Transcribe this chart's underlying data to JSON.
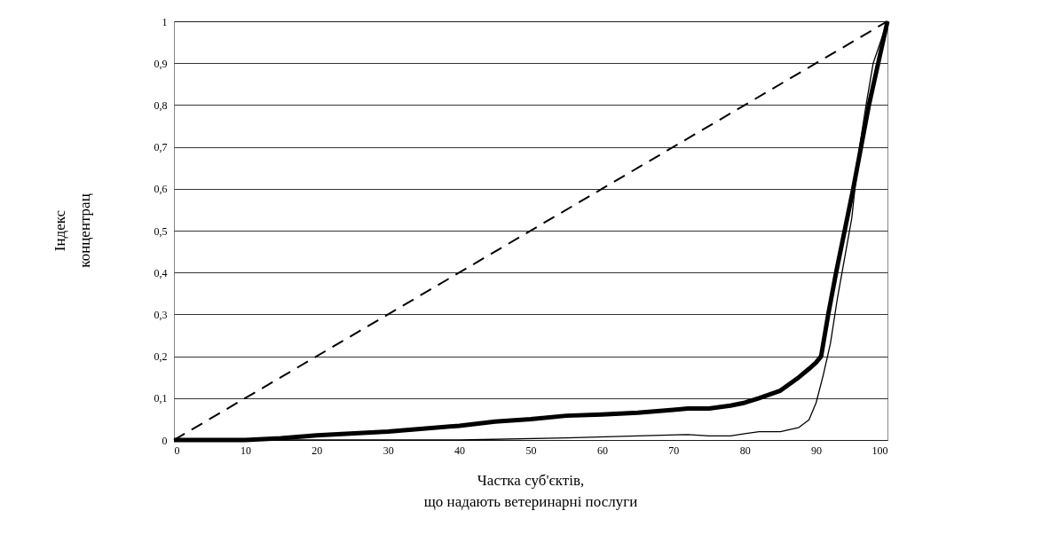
{
  "chart_data": {
    "type": "line",
    "xlabel": "Частка суб'єктів,\nщо надають ветеринарні послуги",
    "ylabel": "Індекс\nконцентрац",
    "series": [
      {
        "color": "#000000",
        "line_style": "dashed",
        "x": [
          0,
          100
        ],
        "values": [
          0,
          1
        ]
      },
      {
        "color": "#000000",
        "x": [
          0,
          10,
          15,
          20,
          30,
          40,
          45,
          50,
          55,
          60,
          65,
          70,
          72,
          75,
          78,
          80,
          82,
          85,
          87.6,
          89,
          90,
          90.7,
          91.7,
          92.8,
          94,
          95.2,
          96.3,
          97.4,
          98.7,
          100
        ],
        "values": [
          0,
          0,
          0.004,
          0.011,
          0.02,
          0.034,
          0.044,
          0.05,
          0.058,
          0.061,
          0.065,
          0.072,
          0.075,
          0.075,
          0.082,
          0.089,
          0.1,
          0.118,
          0.15,
          0.17,
          0.185,
          0.2,
          0.3,
          0.4,
          0.5,
          0.6,
          0.7,
          0.8,
          0.9,
          1
        ]
      },
      {
        "color": "#000000",
        "x": [
          0,
          40,
          55,
          65,
          72,
          75,
          78,
          80,
          82,
          85,
          87.6,
          89,
          90,
          91,
          92,
          93,
          94,
          95,
          96,
          97,
          98,
          100
        ],
        "values": [
          0,
          0,
          0.005,
          0.01,
          0.013,
          0.01,
          0.01,
          0.015,
          0.02,
          0.02,
          0.03,
          0.048,
          0.089,
          0.155,
          0.23,
          0.34,
          0.435,
          0.53,
          0.69,
          0.8,
          0.9,
          1
        ]
      }
    ],
    "xlim": [
      0,
      100
    ],
    "xticks": [
      0,
      10,
      20,
      30,
      40,
      50,
      60,
      70,
      80,
      90,
      100
    ],
    "ylim": [
      0,
      1
    ],
    "yticks": [
      0,
      {
        "value": 0.1,
        "label": "0,1"
      },
      {
        "value": 0.2,
        "label": "0,2"
      },
      {
        "value": 0.3,
        "label": "0,3"
      },
      {
        "value": 0.4,
        "label": "0,4"
      },
      {
        "value": 0.5,
        "label": "0,5"
      },
      {
        "value": 0.6,
        "label": "0,6"
      },
      {
        "value": 0.7,
        "label": "0,7"
      },
      {
        "value": 0.8,
        "label": "0,8"
      },
      {
        "value": 0.9,
        "label": "0,9"
      },
      1
    ],
    "grid": "y",
    "marker": "none"
  }
}
